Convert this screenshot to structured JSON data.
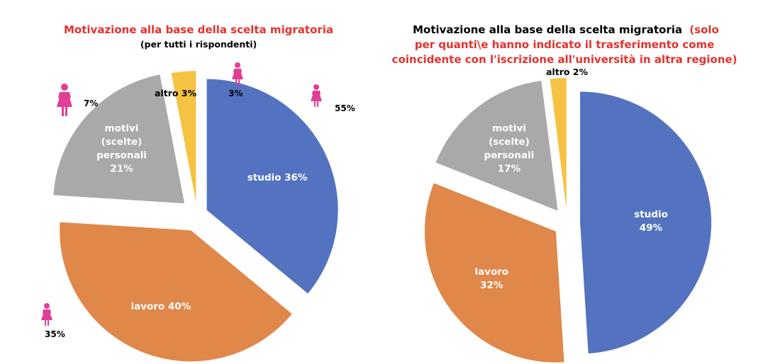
{
  "chart_data": [
    {
      "type": "pie",
      "title": "Motivazione alla base della scelta migratoria",
      "subtitle": "(per tutti i rispondenti)",
      "slices": [
        {
          "label": "studio 36%",
          "value": 36,
          "color": "#5373c0"
        },
        {
          "label": "lavoro 40%",
          "value": 40,
          "color": "#e0874a"
        },
        {
          "label": "motivi (scelte) personali 21%",
          "label_lines": [
            "motivi",
            "(scelte)",
            "personali",
            "21%"
          ],
          "value": 21,
          "color": "#a9a9a9"
        },
        {
          "label": "altro 3%",
          "value": 3,
          "color": "#f5c242"
        }
      ],
      "female_share": [
        {
          "for": "studio",
          "text": "55%"
        },
        {
          "for": "lavoro",
          "text": "35%"
        },
        {
          "for": "motivi (scelte) personali",
          "text": "7%"
        },
        {
          "for": "altro",
          "text": "3%"
        }
      ]
    },
    {
      "type": "pie",
      "title": "Motivazione alla base della scelta migratoria",
      "title_note_lines": [
        "(solo",
        "per quanti\\e hanno indicato il trasferimento come",
        "coincidente con l'iscrizione all'università in altra regione)"
      ],
      "slices": [
        {
          "label": "studio 49%",
          "label_lines": [
            "studio",
            "49%"
          ],
          "value": 49,
          "color": "#5373c0"
        },
        {
          "label": "lavoro 32%",
          "label_lines": [
            "lavoro",
            "32%"
          ],
          "value": 32,
          "color": "#e0874a"
        },
        {
          "label": "motivi (scelte) personali 17%",
          "label_lines": [
            "motivi",
            "(scelte)",
            "personali",
            "17%"
          ],
          "value": 17,
          "color": "#a9a9a9"
        },
        {
          "label": "altro 2%",
          "value": 2,
          "color": "#f5c242"
        }
      ]
    }
  ],
  "colors": {
    "title_red": "#e5322d",
    "female_icon": "#e23e95"
  },
  "icons": {
    "female": "female-person-icon"
  }
}
